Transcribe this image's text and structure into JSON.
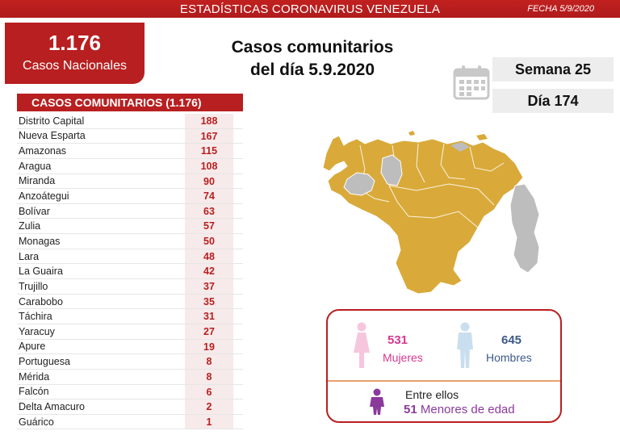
{
  "header": {
    "title": "ESTADÍSTICAS CORONAVIRUS VENEZUELA",
    "date": "FECHA 5/9/2020"
  },
  "national": {
    "count": "1.176",
    "label": "Casos Nacionales"
  },
  "headline": {
    "line1": "Casos comunitarios",
    "line2": "del día 5.9.2020"
  },
  "week": "Semana 25",
  "day": "Día 174",
  "table": {
    "title": "CASOS COMUNITARIOS (1.176)",
    "rows": [
      {
        "state": "Distrito Capital",
        "count": "188"
      },
      {
        "state": "Nueva Esparta",
        "count": "167"
      },
      {
        "state": "Amazonas",
        "count": "115"
      },
      {
        "state": "Aragua",
        "count": "108"
      },
      {
        "state": "Miranda",
        "count": "90"
      },
      {
        "state": "Anzoátegui",
        "count": "74"
      },
      {
        "state": "Bolívar",
        "count": "63"
      },
      {
        "state": "Zulia",
        "count": "57"
      },
      {
        "state": "Monagas",
        "count": "50"
      },
      {
        "state": "Lara",
        "count": "48"
      },
      {
        "state": "La Guaira",
        "count": "42"
      },
      {
        "state": "Trujillo",
        "count": "37"
      },
      {
        "state": "Carabobo",
        "count": "35"
      },
      {
        "state": "Táchira",
        "count": "31"
      },
      {
        "state": "Yaracuy",
        "count": "27"
      },
      {
        "state": "Apure",
        "count": "19"
      },
      {
        "state": "Portuguesa",
        "count": "8"
      },
      {
        "state": "Mérida",
        "count": "8"
      },
      {
        "state": "Falcón",
        "count": "6"
      },
      {
        "state": "Delta Amacuro",
        "count": "2"
      },
      {
        "state": "Guárico",
        "count": "1"
      }
    ]
  },
  "gender": {
    "women_count": "531",
    "women_label": "Mujeres",
    "men_count": "645",
    "men_label": "Hombres",
    "minors_intro": "Entre ellos",
    "minors_count": "51",
    "minors_label": "Menores de edad"
  },
  "colors": {
    "brand_red": "#b81f20",
    "map_affected": "#d9aa3a",
    "map_unaffected": "#bdbdbd",
    "women": "#d8378f",
    "men": "#3d5a8a",
    "minors": "#8b3a9c"
  },
  "icons": {
    "calendar": "calendar-icon",
    "women": "female-figure-icon",
    "men": "male-figure-icon",
    "minors": "child-figure-icon"
  }
}
